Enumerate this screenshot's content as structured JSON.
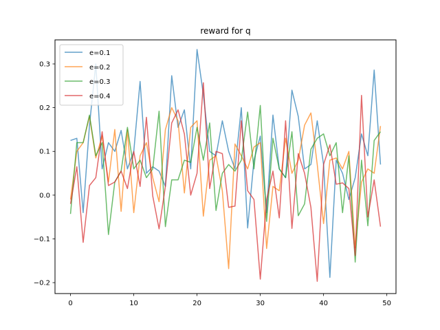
{
  "chart_data": {
    "type": "line",
    "title": "reward for q",
    "xlabel": "",
    "ylabel": "",
    "xlim": [
      -2.45,
      51.45
    ],
    "ylim": [
      -0.225,
      0.355
    ],
    "xticks": [
      0,
      10,
      20,
      30,
      40,
      50
    ],
    "yticks": [
      -0.2,
      -0.1,
      0.0,
      0.1,
      0.2,
      0.3
    ],
    "ytick_labels": [
      "−0.2",
      "−0.1",
      "0.0",
      "0.1",
      "0.2",
      "0.3"
    ],
    "grid": false,
    "legend_position": "top-left",
    "x": [
      0,
      1,
      2,
      3,
      4,
      5,
      6,
      7,
      8,
      9,
      10,
      11,
      12,
      13,
      14,
      15,
      16,
      17,
      18,
      19,
      20,
      21,
      22,
      23,
      24,
      25,
      26,
      27,
      28,
      29,
      30,
      31,
      32,
      33,
      34,
      35,
      36,
      37,
      38,
      39,
      40,
      41,
      42,
      43,
      44,
      45,
      46,
      47,
      48,
      49
    ],
    "series": [
      {
        "name": "e=0.1",
        "color": "#1f77b4",
        "values": [
          0.125,
          0.13,
          -0.04,
          0.16,
          0.3,
          0.06,
          0.12,
          0.1,
          0.148,
          0.06,
          0.1,
          0.26,
          0.05,
          0.065,
          0.055,
          0.02,
          0.273,
          0.155,
          0.195,
          0.06,
          0.333,
          0.23,
          0.1,
          0.09,
          0.17,
          0.1,
          0.06,
          0.2,
          -0.075,
          0.08,
          0.135,
          -0.04,
          0.183,
          0.06,
          0.04,
          0.24,
          0.18,
          0.06,
          0.07,
          0.17,
          0.07,
          -0.188,
          0.08,
          0.05,
          -0.01,
          0.04,
          0.14,
          0.09,
          0.286,
          0.07
        ]
      },
      {
        "name": "e=0.2",
        "color": "#ff7f0e",
        "values": [
          -0.01,
          0.1,
          0.12,
          0.18,
          0.085,
          0.135,
          0.03,
          0.15,
          -0.037,
          0.15,
          -0.04,
          0.09,
          0.12,
          0.04,
          -0.015,
          0.15,
          0.2,
          0.17,
          0.005,
          0.155,
          0.17,
          -0.048,
          0.08,
          0.09,
          0.01,
          -0.168,
          0.117,
          0.09,
          0.06,
          0.11,
          0.12,
          -0.122,
          0.02,
          0.01,
          0.13,
          0.05,
          0.08,
          0.16,
          0.188,
          0.07,
          -0.065,
          0.08,
          0.085,
          0.06,
          0.1,
          -0.12,
          0.03,
          0.06,
          0.05,
          0.158
        ]
      },
      {
        "name": "e=0.3",
        "color": "#2ca02c",
        "values": [
          -0.043,
          0.12,
          0.12,
          0.183,
          0.09,
          0.12,
          -0.09,
          0.03,
          0.055,
          0.155,
          0.06,
          0.08,
          0.04,
          0.06,
          0.192,
          -0.072,
          0.035,
          0.035,
          0.08,
          0.075,
          0.155,
          0.08,
          0.165,
          -0.035,
          0.05,
          0.07,
          0.055,
          0.08,
          0.19,
          0.06,
          0.205,
          -0.06,
          0.13,
          0.06,
          0.04,
          0.145,
          -0.047,
          -0.02,
          0.105,
          0.13,
          0.14,
          0.09,
          0.12,
          -0.04,
          0.09,
          -0.153,
          0.08,
          -0.07,
          0.125,
          0.145
        ]
      },
      {
        "name": "e=0.4",
        "color": "#d62728",
        "values": [
          -0.02,
          0.065,
          -0.108,
          0.022,
          0.04,
          0.145,
          0.022,
          0.03,
          0.055,
          0.015,
          0.1,
          0.02,
          0.178,
          -0.002,
          -0.077,
          0.02,
          0.165,
          0.195,
          0.14,
          0.0,
          0.05,
          0.257,
          0.015,
          0.1,
          0.095,
          -0.028,
          -0.025,
          0.17,
          0.01,
          -0.01,
          -0.192,
          -0.01,
          0.055,
          -0.052,
          0.17,
          -0.076,
          0.095,
          0.05,
          -0.028,
          -0.197,
          0.07,
          0.115,
          0.025,
          0.028,
          0.015,
          -0.138,
          0.228,
          -0.05,
          0.035,
          -0.072
        ]
      }
    ]
  }
}
